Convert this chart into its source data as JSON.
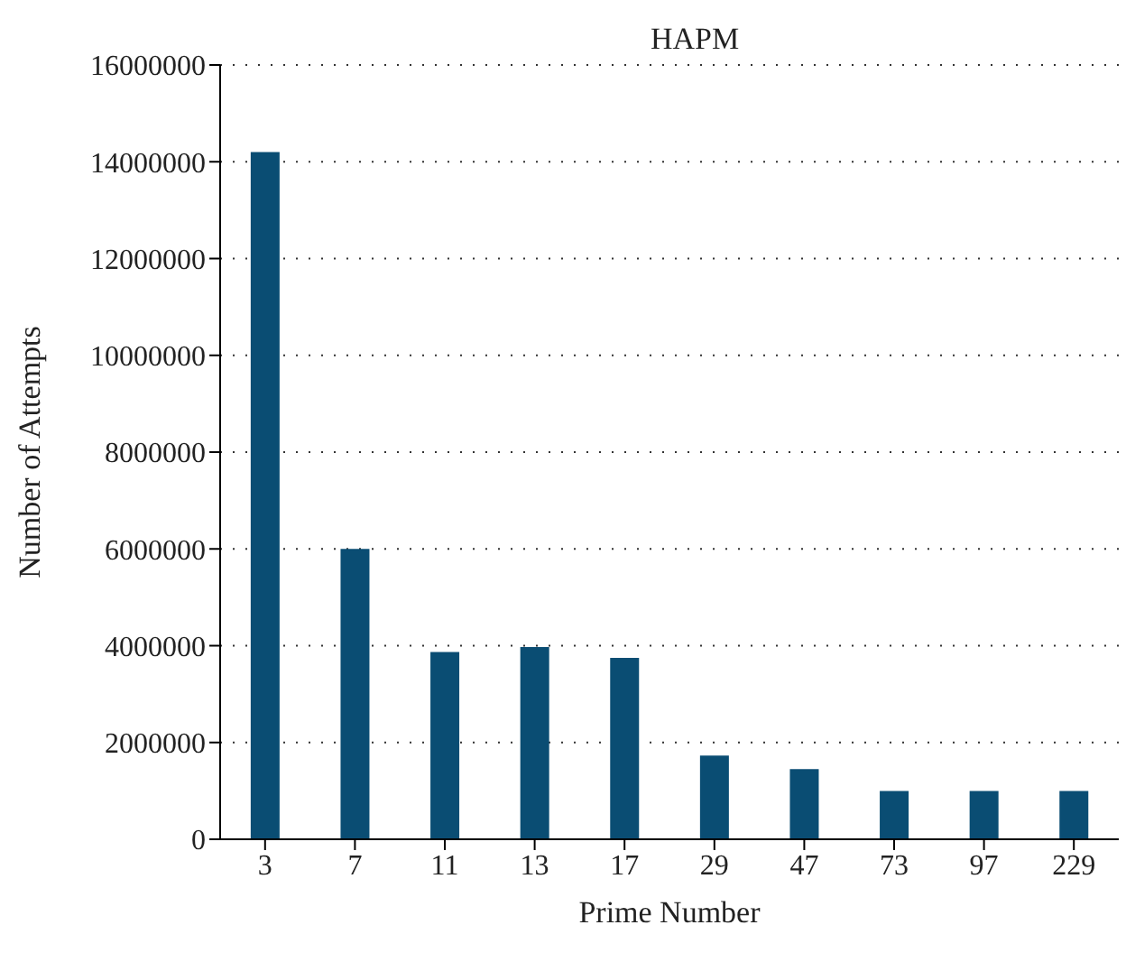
{
  "chart_data": {
    "type": "bar",
    "title": "HAPM",
    "xlabel": "Prime Number",
    "ylabel": "Number of Attempts",
    "categories": [
      "3",
      "7",
      "11",
      "13",
      "17",
      "29",
      "47",
      "73",
      "97",
      "229"
    ],
    "values": [
      14200000,
      6000000,
      3870000,
      3970000,
      3750000,
      1730000,
      1450000,
      1000000,
      1000000,
      1000000
    ],
    "color": "#0a4d73",
    "ylim": [
      0,
      16000000
    ],
    "yticks": [
      0,
      2000000,
      4000000,
      6000000,
      8000000,
      10000000,
      12000000,
      14000000,
      16000000
    ],
    "grid": "y"
  }
}
